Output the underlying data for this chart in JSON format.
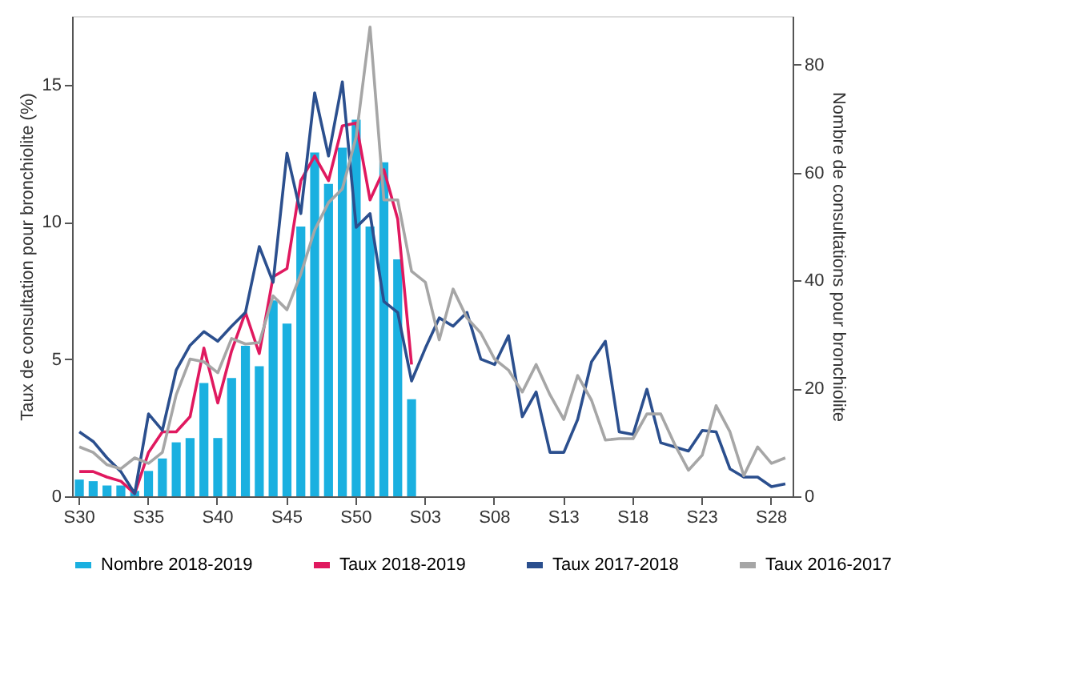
{
  "chart_data": {
    "type": "line",
    "ylabel": "Taux de consultation pour bronchiolite (%)",
    "y2label": "Nombre de consultations pour bronchiolite",
    "categories": [
      "S30",
      null,
      null,
      null,
      null,
      "S35",
      null,
      null,
      null,
      null,
      "S40",
      null,
      null,
      null,
      null,
      "S45",
      null,
      null,
      null,
      null,
      "S50",
      null,
      null,
      null,
      null,
      "S03",
      null,
      null,
      null,
      null,
      "S08",
      null,
      null,
      null,
      null,
      "S13",
      null,
      null,
      null,
      null,
      "S18",
      null,
      null,
      null,
      null,
      "S23",
      null,
      null,
      null,
      null,
      "S28",
      null
    ],
    "ylim": [
      0,
      17.5
    ],
    "yticks": [
      0,
      5,
      10,
      15
    ],
    "y2lim": [
      0,
      89
    ],
    "y2ticks": [
      0,
      20,
      40,
      60,
      80
    ],
    "legend": "bottom",
    "series": [
      {
        "name": "Nombre 2018-2019",
        "type": "bar",
        "axis": "y2",
        "color": "#1ab0e0",
        "values": [
          3.1,
          2.8,
          2.0,
          2.0,
          1.0,
          4.7,
          7.0,
          10.0,
          10.8,
          21,
          10.8,
          21.9,
          27.9,
          24.1,
          36.3,
          32,
          50,
          63.7,
          57.9,
          64.6,
          69.8,
          50,
          61.9,
          43.9,
          18,
          null,
          null,
          null,
          null,
          null,
          null,
          null,
          null,
          null,
          null,
          null,
          null,
          null,
          null,
          null,
          null,
          null,
          null,
          null,
          null,
          null,
          null,
          null,
          null,
          null,
          null,
          null
        ]
      },
      {
        "name": "Taux 2018-2019",
        "color": "#e0195f",
        "values": [
          0.9,
          0.9,
          0.7,
          0.55,
          0.1,
          1.6,
          2.35,
          2.35,
          2.9,
          5.4,
          3.4,
          5.3,
          6.7,
          5.2,
          8.0,
          8.3,
          11.5,
          12.4,
          11.5,
          13.5,
          13.6,
          10.8,
          11.9,
          10.1,
          4.8,
          null,
          null,
          null,
          null,
          null,
          null,
          null,
          null,
          null,
          null,
          null,
          null,
          null,
          null,
          null,
          null,
          null,
          null,
          null,
          null,
          null,
          null,
          null,
          null,
          null,
          null,
          null
        ]
      },
      {
        "name": "Taux 2017-2018",
        "color": "#2b4f8e",
        "values": [
          2.35,
          2.0,
          1.4,
          0.9,
          0.1,
          3.0,
          2.4,
          4.6,
          5.5,
          6.0,
          5.65,
          6.2,
          6.7,
          9.1,
          7.8,
          12.5,
          10.3,
          14.7,
          12.4,
          15.1,
          9.8,
          10.3,
          7.1,
          6.7,
          4.2,
          5.4,
          6.5,
          6.2,
          6.7,
          5.0,
          4.8,
          5.85,
          2.9,
          3.8,
          1.6,
          1.6,
          2.8,
          4.9,
          5.65,
          2.35,
          2.25,
          3.9,
          1.95,
          1.8,
          1.65,
          2.4,
          2.35,
          1.0,
          0.7,
          0.7,
          0.35,
          0.45
        ]
      },
      {
        "name": "Taux 2016-2017",
        "color": "#a6a6a6",
        "values": [
          1.8,
          1.6,
          1.15,
          1.0,
          1.4,
          1.2,
          1.6,
          3.7,
          5.0,
          4.9,
          4.5,
          5.75,
          5.55,
          5.6,
          7.3,
          6.8,
          8.1,
          9.7,
          10.7,
          11.2,
          13.1,
          17.1,
          10.8,
          10.8,
          8.2,
          7.8,
          5.7,
          7.55,
          6.5,
          5.95,
          5.0,
          4.6,
          3.8,
          4.8,
          3.7,
          2.8,
          4.4,
          3.5,
          2.05,
          2.1,
          2.1,
          3.0,
          3.0,
          1.9,
          0.95,
          1.5,
          3.3,
          2.35,
          0.75,
          1.8,
          1.2,
          1.4
        ]
      }
    ]
  }
}
